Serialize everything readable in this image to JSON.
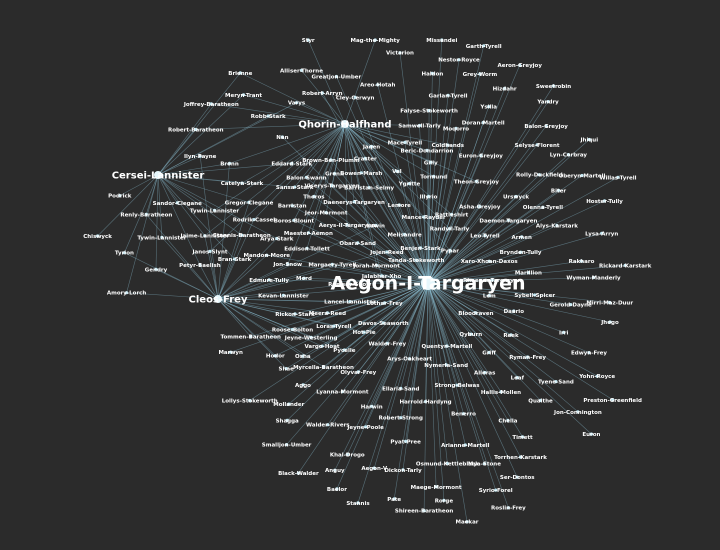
{
  "hubs": [
    {
      "id": "aegon",
      "label": "Aegon-I-Targaryen",
      "size": "large"
    },
    {
      "id": "qhorin",
      "label": "Qhorin-Halfhand",
      "size": "medium"
    },
    {
      "id": "cersei",
      "label": "Cersei-Lannister",
      "size": "medium"
    },
    {
      "id": "cleos",
      "label": "Cleos-Frey",
      "size": "medium"
    }
  ],
  "nodes": [
    {
      "label": "Catelyn-Stark",
      "links": [
        "qhorin",
        "cersei"
      ]
    },
    {
      "label": "Meryn-Trant",
      "links": [
        "qhorin",
        "cersei"
      ]
    },
    {
      "label": "Tywin-Lannister",
      "links": [
        "qhorin",
        "cersei"
      ]
    },
    {
      "label": "Robb-Stark",
      "links": [
        "qhorin",
        "cersei"
      ]
    },
    {
      "label": "Chiswyck",
      "links": [
        "cersei"
      ]
    },
    {
      "label": "Sansa-Stark",
      "links": [
        "qhorin",
        "cersei"
      ]
    },
    {
      "label": "Joffrey-Baratheon",
      "links": [
        "qhorin",
        "cersei"
      ]
    },
    {
      "label": "Brienne",
      "links": [
        "qhorin",
        "cersei"
      ]
    },
    {
      "label": "Eddard-Stark",
      "links": [
        "qhorin",
        "cersei"
      ]
    },
    {
      "label": "Robert-Baratheon",
      "links": [
        "qhorin",
        "cersei"
      ]
    },
    {
      "label": "Podrick",
      "links": [
        "cersei"
      ]
    },
    {
      "label": "Gendry",
      "links": [
        "cersei",
        "cleos"
      ]
    },
    {
      "label": "Jaime-Lannister",
      "links": [
        "qhorin",
        "cersei",
        "cleos"
      ]
    },
    {
      "label": "Varys",
      "links": [
        "qhorin",
        "cersei"
      ]
    },
    {
      "label": "Bronn",
      "links": [
        "qhorin",
        "cersei",
        "cleos"
      ]
    },
    {
      "label": "Renly-Baratheon",
      "links": [
        "cersei",
        "cleos"
      ]
    },
    {
      "label": "Bran-Stark",
      "links": [
        "cersei",
        "cleos"
      ]
    },
    {
      "label": "Sandor-Clegane",
      "links": [
        "cersei"
      ]
    },
    {
      "label": "Tyrion",
      "links": [
        "cersei",
        "cleos"
      ]
    },
    {
      "label": "Amory-Lorch",
      "links": [
        "cersei",
        "cleos"
      ]
    },
    {
      "label": "Arya-Stark",
      "links": [
        "cersei",
        "cleos"
      ]
    },
    {
      "label": "Tywin-Lannister",
      "links": [
        "cersei",
        "cleos"
      ]
    },
    {
      "label": "Ilyn-Payne",
      "links": [
        "cersei",
        "cleos"
      ]
    },
    {
      "label": "Gregor-Clegane",
      "links": [
        "cersei",
        "cleos"
      ]
    },
    {
      "label": "Petyr-Baelish",
      "links": [
        "cersei",
        "cleos"
      ]
    },
    {
      "label": "Stannis-Baratheon",
      "links": [
        "cersei",
        "cleos"
      ]
    },
    {
      "label": "Jon-Snow",
      "links": [
        "qhorin",
        "aegon",
        "cleos"
      ]
    },
    {
      "label": "Mance-Rayder",
      "links": [
        "qhorin",
        "aegon"
      ]
    },
    {
      "label": "Samwell-Tarly",
      "links": [
        "qhorin",
        "aegon"
      ]
    },
    {
      "label": "Daenerys-Targaryen",
      "links": [
        "qhorin",
        "aegon"
      ]
    },
    {
      "label": "Jorah-Mormont",
      "links": [
        "qhorin",
        "aegon"
      ]
    },
    {
      "label": "Viserys-Targaryen",
      "links": [
        "qhorin",
        "aegon"
      ]
    },
    {
      "label": "Rhaegar-Targaryen",
      "links": [
        "aegon"
      ]
    },
    {
      "label": "Aerys-II-Targaryen",
      "links": [
        "qhorin",
        "aegon"
      ]
    },
    {
      "label": "Maester-Aemon",
      "links": [
        "qhorin",
        "aegon"
      ]
    },
    {
      "label": "Lysa-Arryn",
      "links": [
        "aegon"
      ]
    },
    {
      "label": "Roose-Bolton",
      "links": [
        "aegon",
        "cleos"
      ]
    },
    {
      "label": "Theon-Greyjoy",
      "links": [
        "qhorin",
        "aegon"
      ]
    },
    {
      "label": "Walder-Frey",
      "links": [
        "aegon"
      ]
    },
    {
      "label": "Hodor",
      "links": [
        "aegon",
        "cleos"
      ]
    },
    {
      "label": "Loras-Tyrell",
      "links": [
        "aegon",
        "cleos"
      ]
    },
    {
      "label": "Margaery-Tyrell",
      "links": [
        "aegon",
        "cleos"
      ]
    },
    {
      "label": "Oberyn-Martell",
      "links": [
        "aegon"
      ]
    },
    {
      "label": "Edmure-Tully",
      "links": [
        "aegon",
        "cleos"
      ]
    },
    {
      "label": "Gilly",
      "links": [
        "qhorin",
        "aegon"
      ]
    },
    {
      "label": "Craster",
      "links": [
        "qhorin",
        "aegon"
      ]
    },
    {
      "label": "Ygritte",
      "links": [
        "qhorin",
        "aegon"
      ]
    },
    {
      "label": "Stannis",
      "links": [
        "aegon"
      ]
    },
    {
      "label": "Davos-Seaworth",
      "links": [
        "aegon"
      ]
    },
    {
      "label": "Melisandre",
      "links": [
        "qhorin",
        "aegon"
      ]
    },
    {
      "label": "Barristan-Selmy",
      "links": [
        "qhorin",
        "aegon"
      ]
    },
    {
      "label": "Doran-Martell",
      "links": [
        "aegon"
      ]
    },
    {
      "label": "Illyrio",
      "links": [
        "aegon"
      ]
    },
    {
      "label": "Khal-Drogo",
      "links": [
        "aegon"
      ]
    },
    {
      "label": "Mace-Tyrell",
      "links": [
        "qhorin",
        "aegon"
      ]
    },
    {
      "label": "Olenna-Tyrell",
      "links": [
        "aegon"
      ]
    },
    {
      "label": "Euron-Greyjoy",
      "links": [
        "aegon"
      ]
    },
    {
      "label": "Balon-Greyjoy",
      "links": [
        "aegon"
      ]
    },
    {
      "label": "Victarion",
      "links": [
        "aegon"
      ]
    },
    {
      "label": "Asha-Greyjoy",
      "links": [
        "aegon"
      ]
    },
    {
      "label": "Ramsay-Snow",
      "links": [
        "aegon",
        "cleos"
      ]
    },
    {
      "label": "Reek",
      "links": [
        "aegon"
      ]
    },
    {
      "label": "Hoster-Tully",
      "links": [
        "aegon"
      ]
    },
    {
      "label": "Brynden-Tully",
      "links": [
        "aegon"
      ]
    },
    {
      "label": "Kevan-Lannister",
      "links": [
        "aegon",
        "cleos"
      ]
    },
    {
      "label": "Lancel-Lannister",
      "links": [
        "aegon",
        "cleos"
      ]
    },
    {
      "label": "Pycelle",
      "links": [
        "aegon",
        "cleos"
      ]
    },
    {
      "label": "Qyburn",
      "links": [
        "aegon"
      ]
    },
    {
      "label": "Tommen-Baratheon",
      "links": [
        "aegon",
        "cleos"
      ]
    },
    {
      "label": "Myrcella-Baratheon",
      "links": [
        "aegon",
        "cleos"
      ]
    },
    {
      "label": "Shireen-Baratheon",
      "links": [
        "aegon"
      ]
    },
    {
      "label": "Selyse-Florent",
      "links": [
        "aegon"
      ]
    },
    {
      "label": "Hizdahr",
      "links": [
        "aegon"
      ]
    },
    {
      "label": "Missandei",
      "links": [
        "aegon"
      ]
    },
    {
      "label": "Grey-Worm",
      "links": [
        "aegon"
      ]
    },
    {
      "label": "Daario",
      "links": [
        "aegon"
      ]
    },
    {
      "label": "Quentyn-Martell",
      "links": [
        "aegon"
      ]
    },
    {
      "label": "Arianne-Martell",
      "links": [
        "aegon"
      ]
    },
    {
      "label": "Areo-Hotah",
      "links": [
        "aegon"
      ]
    },
    {
      "label": "Ellaria-Sand",
      "links": [
        "aegon"
      ]
    },
    {
      "label": "Obara-Sand",
      "links": [
        "aegon"
      ]
    },
    {
      "label": "Nymeria-Sand",
      "links": [
        "aegon"
      ]
    },
    {
      "label": "Tyene-Sand",
      "links": [
        "aegon"
      ]
    },
    {
      "label": "Jon-Connington",
      "links": [
        "aegon"
      ]
    },
    {
      "label": "Griff",
      "links": [
        "aegon"
      ]
    },
    {
      "label": "Haldon",
      "links": [
        "aegon"
      ]
    },
    {
      "label": "Lemore",
      "links": [
        "aegon"
      ]
    },
    {
      "label": "Rolly-Duckfield",
      "links": [
        "aegon"
      ]
    },
    {
      "label": "Yandry",
      "links": [
        "aegon"
      ]
    },
    {
      "label": "Ysilla",
      "links": [
        "aegon"
      ]
    },
    {
      "label": "Brown-Ben-Plumm",
      "links": [
        "aegon"
      ]
    },
    {
      "label": "Barristan",
      "links": [
        "aegon"
      ]
    },
    {
      "label": "Strong-Belwas",
      "links": [
        "aegon"
      ]
    },
    {
      "label": "Irri",
      "links": [
        "aegon"
      ]
    },
    {
      "label": "Jhiqui",
      "links": [
        "aegon"
      ]
    },
    {
      "label": "Rakharo",
      "links": [
        "aegon"
      ]
    },
    {
      "label": "Aggo",
      "links": [
        "aegon"
      ]
    },
    {
      "label": "Jhogo",
      "links": [
        "aegon"
      ]
    },
    {
      "label": "Mirri-Maz-Duur",
      "links": [
        "aegon"
      ]
    },
    {
      "label": "Xaro-Xhoan-Daxos",
      "links": [
        "aegon"
      ]
    },
    {
      "label": "Pyat-Pree",
      "links": [
        "aegon"
      ]
    },
    {
      "label": "Quaithe",
      "links": [
        "aegon"
      ]
    },
    {
      "label": "Robert-Strong",
      "links": [
        "aegon"
      ]
    },
    {
      "label": "Garlan-Tyrell",
      "links": [
        "aegon"
      ]
    },
    {
      "label": "Willas-Tyrell",
      "links": [
        "aegon"
      ]
    },
    {
      "label": "Randyll-Tarly",
      "links": [
        "qhorin",
        "aegon"
      ]
    },
    {
      "label": "Dickon-Tarly",
      "links": [
        "aegon"
      ]
    },
    {
      "label": "Walder-Rivers",
      "links": [
        "aegon"
      ]
    },
    {
      "label": "Black-Walder",
      "links": [
        "aegon"
      ]
    },
    {
      "label": "Lothar-Frey",
      "links": [
        "aegon",
        "cleos"
      ]
    },
    {
      "label": "Edwyn-Frey",
      "links": [
        "aegon"
      ]
    },
    {
      "label": "Ryman-Frey",
      "links": [
        "aegon"
      ]
    },
    {
      "label": "Olyvar-Frey",
      "links": [
        "aegon"
      ]
    },
    {
      "label": "Roslin-Frey",
      "links": [
        "aegon"
      ]
    },
    {
      "label": "Benjen-Stark",
      "links": [
        "qhorin",
        "aegon"
      ]
    },
    {
      "label": "Jeor-Mormont",
      "links": [
        "qhorin",
        "aegon"
      ]
    },
    {
      "label": "Alliser-Thorne",
      "links": [
        "qhorin"
      ]
    },
    {
      "label": "Janos-Slynt",
      "links": [
        "qhorin",
        "cleos"
      ]
    },
    {
      "label": "Bowen-Marsh",
      "links": [
        "qhorin",
        "aegon"
      ]
    },
    {
      "label": "Eddison-Tollett",
      "links": [
        "qhorin",
        "aegon"
      ]
    },
    {
      "label": "Grenn",
      "links": [
        "qhorin",
        "aegon"
      ]
    },
    {
      "label": "Pypar",
      "links": [
        "qhorin",
        "aegon"
      ]
    },
    {
      "label": "Val",
      "links": [
        "qhorin",
        "aegon"
      ]
    },
    {
      "label": "Tormund",
      "links": [
        "qhorin",
        "aegon"
      ]
    },
    {
      "label": "Styr",
      "links": [
        "qhorin"
      ]
    },
    {
      "label": "Rattleshirt",
      "links": [
        "qhorin",
        "aegon"
      ]
    },
    {
      "label": "Mag-the-Mighty",
      "links": [
        "qhorin"
      ]
    },
    {
      "label": "Leaf",
      "links": [
        "aegon"
      ]
    },
    {
      "label": "Bloodraven",
      "links": [
        "aegon"
      ]
    },
    {
      "label": "Coldhands",
      "links": [
        "qhorin",
        "aegon"
      ]
    },
    {
      "label": "Meera-Reed",
      "links": [
        "aegon",
        "cleos"
      ]
    },
    {
      "label": "Jojen-Reed",
      "links": [
        "aegon",
        "cleos"
      ]
    },
    {
      "label": "Osha",
      "links": [
        "aegon",
        "cleos"
      ]
    },
    {
      "label": "Rickon-Stark",
      "links": [
        "aegon",
        "cleos"
      ]
    },
    {
      "label": "Luwin",
      "links": [
        "aegon",
        "cleos"
      ]
    },
    {
      "label": "Rodrik-Cassel",
      "links": [
        "qhorin",
        "cleos"
      ]
    },
    {
      "label": "Nan",
      "links": [
        "aegon"
      ]
    },
    {
      "label": "Wyman-Manderly",
      "links": [
        "aegon"
      ]
    },
    {
      "label": "Hallis-Mollen",
      "links": [
        "aegon"
      ]
    },
    {
      "label": "Cley-Cerwyn",
      "links": [
        "aegon"
      ]
    },
    {
      "label": "Lyanna-Mormont",
      "links": [
        "aegon"
      ]
    },
    {
      "label": "Maege-Mormont",
      "links": [
        "aegon"
      ]
    },
    {
      "label": "Alys-Karstark",
      "links": [
        "aegon"
      ]
    },
    {
      "label": "Rickard-Karstark",
      "links": [
        "aegon"
      ]
    },
    {
      "label": "Greatjon-Umber",
      "links": [
        "aegon"
      ]
    },
    {
      "label": "Smalljon-Umber",
      "links": [
        "aegon"
      ]
    },
    {
      "label": "Torrhen-Karstark",
      "links": [
        "aegon"
      ]
    },
    {
      "label": "Jeyne-Poole",
      "links": [
        "aegon"
      ]
    },
    {
      "label": "Jeyne-Westerling",
      "links": [
        "aegon",
        "cleos"
      ]
    },
    {
      "label": "Sybell-Spicer",
      "links": [
        "aegon"
      ]
    },
    {
      "label": "Gerold-Dayne",
      "links": [
        "aegon"
      ]
    },
    {
      "label": "Arys-Oakheart",
      "links": [
        "aegon"
      ]
    },
    {
      "label": "Balon-Swann",
      "links": [
        "qhorin",
        "aegon"
      ]
    },
    {
      "label": "Boros-Blount",
      "links": [
        "qhorin",
        "aegon"
      ]
    },
    {
      "label": "Mandon-Moore",
      "links": [
        "aegon",
        "cleos"
      ]
    },
    {
      "label": "Preston-Greenfield",
      "links": [
        "aegon"
      ]
    },
    {
      "label": "Osmund-Kettleblack",
      "links": [
        "aegon"
      ]
    },
    {
      "label": "Jalabhar-Xho",
      "links": [
        "qhorin",
        "aegon"
      ]
    },
    {
      "label": "Ser-Dontos",
      "links": [
        "aegon"
      ]
    },
    {
      "label": "Shae",
      "links": [
        "aegon",
        "cleos"
      ]
    },
    {
      "label": "Timett",
      "links": [
        "aegon"
      ]
    },
    {
      "label": "Shagga",
      "links": [
        "aegon"
      ]
    },
    {
      "label": "Chella",
      "links": [
        "aegon"
      ]
    },
    {
      "label": "Lollys-Stokeworth",
      "links": [
        "aegon"
      ]
    },
    {
      "label": "Tanda-Stokeworth",
      "links": [
        "qhorin",
        "aegon"
      ]
    },
    {
      "label": "Falyse-Stokeworth",
      "links": [
        "aegon"
      ]
    },
    {
      "label": "Pate",
      "links": [
        "aegon"
      ]
    },
    {
      "label": "Marwyn",
      "links": [
        "aegon"
      ]
    },
    {
      "label": "Alleras",
      "links": [
        "aegon"
      ]
    },
    {
      "label": "Mollander",
      "links": [
        "aegon"
      ]
    },
    {
      "label": "Armen",
      "links": [
        "aegon"
      ]
    },
    {
      "label": "Leo-Tyrell",
      "links": [
        "aegon"
      ]
    },
    {
      "label": "Garth-Tyrell",
      "links": [
        "aegon"
      ]
    },
    {
      "label": "Moqorro",
      "links": [
        "aegon"
      ]
    },
    {
      "label": "Benerro",
      "links": [
        "aegon"
      ]
    },
    {
      "label": "Thoros",
      "links": [
        "qhorin",
        "aegon"
      ]
    },
    {
      "label": "Beric-Dondarrion",
      "links": [
        "qhorin",
        "aegon"
      ]
    },
    {
      "label": "Lem",
      "links": [
        "aegon"
      ]
    },
    {
      "label": "Anguy",
      "links": [
        "aegon"
      ]
    },
    {
      "label": "Harwin",
      "links": [
        "aegon"
      ]
    },
    {
      "label": "Hot-Pie",
      "links": [
        "aegon",
        "cleos"
      ]
    },
    {
      "label": "Jaqen",
      "links": [
        "qhorin",
        "aegon"
      ]
    },
    {
      "label": "Syrio-Forel",
      "links": [
        "aegon"
      ]
    },
    {
      "label": "Urswyck",
      "links": [
        "aegon"
      ]
    },
    {
      "label": "Vargo-Hoat",
      "links": [
        "aegon",
        "cleos"
      ]
    },
    {
      "label": "Rorge",
      "links": [
        "aegon"
      ]
    },
    {
      "label": "Biter",
      "links": [
        "aegon"
      ]
    },
    {
      "label": "Mord",
      "links": [
        "aegon",
        "cleos"
      ]
    },
    {
      "label": "Nestor-Royce",
      "links": [
        "aegon"
      ]
    },
    {
      "label": "Yohn-Royce",
      "links": [
        "aegon"
      ]
    },
    {
      "label": "Lyn-Corbray",
      "links": [
        "aegon"
      ]
    },
    {
      "label": "Robert-Arryn",
      "links": [
        "aegon"
      ]
    },
    {
      "label": "Mya-Stone",
      "links": [
        "aegon"
      ]
    },
    {
      "label": "Harrold-Hardyng",
      "links": [
        "aegon"
      ]
    },
    {
      "label": "Marillion",
      "links": [
        "aegon"
      ]
    },
    {
      "label": "Sweetrobin",
      "links": [
        "aegon"
      ]
    },
    {
      "label": "Euron",
      "links": [
        "aegon"
      ]
    },
    {
      "label": "Aeron-Greyjoy",
      "links": [
        "aegon"
      ]
    },
    {
      "label": "Baelor",
      "links": [
        "aegon"
      ]
    },
    {
      "label": "Daemon-Targaryen",
      "links": [
        "aegon"
      ]
    },
    {
      "label": "Aegon-V",
      "links": [
        "aegon"
      ]
    },
    {
      "label": "Maekar",
      "links": [
        "aegon"
      ]
    }
  ]
}
